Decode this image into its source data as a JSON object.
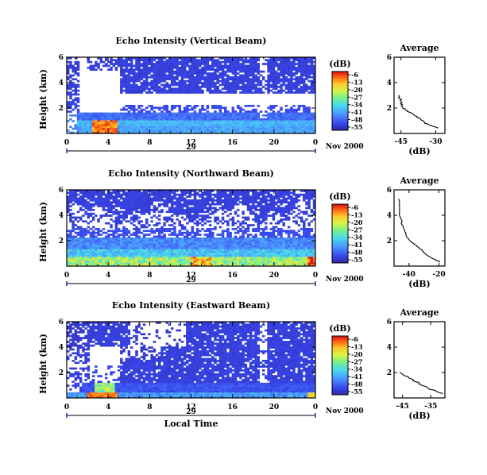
{
  "chart_data": [
    {
      "type": "heatmap",
      "title": "Echo Intensity (Vertical Beam)",
      "ylabel": "Height (km)",
      "xlabel": "",
      "x_ticks": [
        "0",
        "4",
        "8",
        "12",
        "16",
        "20",
        "0"
      ],
      "xlim": [
        0,
        24
      ],
      "y_ticks": [
        "2",
        "4",
        "6"
      ],
      "ylim": [
        0,
        6
      ],
      "date_day": "29",
      "date_month_year": "Nov 2000",
      "colorbar": {
        "unit": "(dB)",
        "ticks": [
          "-6",
          "-13",
          "-20",
          "-27",
          "-34",
          "-41",
          "-48",
          "-55"
        ],
        "range": [
          -58,
          -3
        ]
      },
      "profile": {
        "title": "Average",
        "xlabel": "(dB)",
        "x_ticks": [
          "-45",
          "-30"
        ],
        "xlim": [
          -48,
          -26
        ],
        "y_ticks": [
          "2",
          "4",
          "6"
        ],
        "ylim": [
          0,
          6
        ],
        "height_km": [
          0.4,
          0.8,
          1.2,
          1.6,
          2.0,
          2.5,
          3.0
        ],
        "avg_db": [
          -28.5,
          -34.5,
          -37.5,
          -40.5,
          -44,
          -45,
          -46
        ]
      }
    },
    {
      "type": "heatmap",
      "title": "Echo Intensity (Northward Beam)",
      "ylabel": "Height (km)",
      "xlabel": "",
      "x_ticks": [
        "0",
        "4",
        "8",
        "12",
        "16",
        "20",
        "0"
      ],
      "xlim": [
        0,
        24
      ],
      "y_ticks": [
        "2",
        "4",
        "6"
      ],
      "ylim": [
        0,
        6
      ],
      "date_day": "29",
      "date_month_year": "Nov 2000",
      "colorbar": {
        "unit": "(dB)",
        "ticks": [
          "-6",
          "-13",
          "-20",
          "-27",
          "-34",
          "-41",
          "-48",
          "-55"
        ],
        "range": [
          -58,
          -3
        ]
      },
      "profile": {
        "title": "Average",
        "xlabel": "(dB)",
        "x_ticks": [
          "-40",
          "-20"
        ],
        "xlim": [
          -50,
          -16
        ],
        "y_ticks": [
          "2",
          "4",
          "6"
        ],
        "ylim": [
          0,
          6
        ],
        "height_km": [
          0.3,
          0.7,
          1.2,
          1.7,
          2.2,
          3.0,
          4.0,
          5.3
        ],
        "avg_db": [
          -19,
          -26,
          -31,
          -36,
          -41,
          -44,
          -46,
          -47
        ]
      }
    },
    {
      "type": "heatmap",
      "title": "Echo Intensity (Eastward Beam)",
      "ylabel": "Height (km)",
      "xlabel": "Local Time",
      "x_ticks": [
        "0",
        "4",
        "8",
        "12",
        "16",
        "20",
        "0"
      ],
      "xlim": [
        0,
        24
      ],
      "y_ticks": [
        "2",
        "4",
        "6"
      ],
      "ylim": [
        0,
        6
      ],
      "date_day": "29",
      "date_month_year": "Nov 2000",
      "colorbar": {
        "unit": "(dB)",
        "ticks": [
          "-6",
          "-13",
          "-20",
          "-27",
          "-34",
          "-41",
          "-48",
          "-55"
        ],
        "range": [
          -58,
          -3
        ]
      },
      "profile": {
        "title": "Average",
        "xlabel": "(dB)",
        "x_ticks": [
          "-45",
          "-35"
        ],
        "xlim": [
          -48,
          -30
        ],
        "y_ticks": [
          "2",
          "4",
          "6"
        ],
        "ylim": [
          0,
          6
        ],
        "height_km": [
          0.3,
          0.7,
          1.1,
          1.5,
          2.0
        ],
        "avg_db": [
          -30.5,
          -35.5,
          -39,
          -42,
          -46
        ]
      }
    }
  ]
}
